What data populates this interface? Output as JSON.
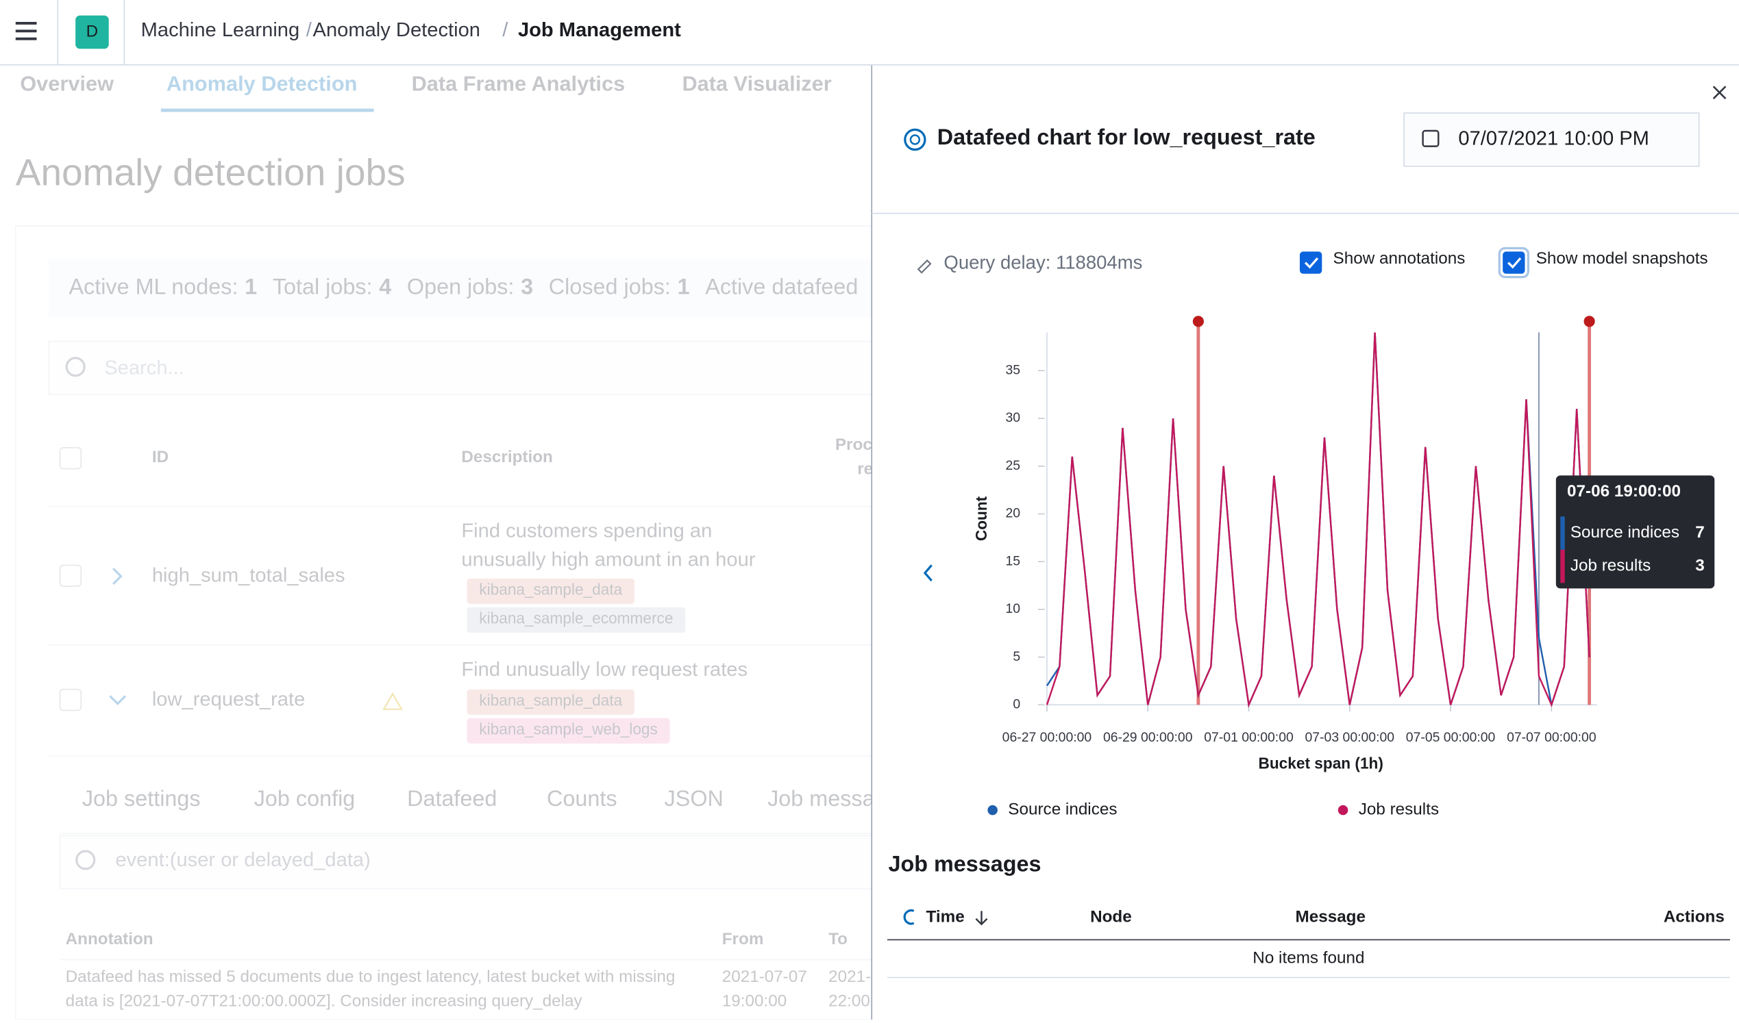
{
  "header": {
    "logo": "D",
    "breadcrumbs": [
      "Machine Learning",
      "Anomaly Detection",
      "Job Management"
    ]
  },
  "tabs": [
    "Overview",
    "Anomaly Detection",
    "Data Frame Analytics",
    "Data Visualizer"
  ],
  "page": {
    "title": "Anomaly detection jobs",
    "stats": [
      {
        "label": "Active ML nodes:",
        "value": 1
      },
      {
        "label": "Total jobs:",
        "value": 4
      },
      {
        "label": "Open jobs:",
        "value": 3
      },
      {
        "label": "Closed jobs:",
        "value": 1
      },
      {
        "label": "Active datafeed",
        "value": null
      }
    ],
    "search_placeholder": "Search...",
    "columns": [
      "ID",
      "Description",
      "Proc",
      "re"
    ],
    "rows": [
      {
        "id": "high_sum_total_sales",
        "description": [
          "Find customers spending an",
          "unusually high amount in an hour"
        ],
        "tags": [
          "kibana_sample_data",
          "kibana_sample_ecommerce"
        ]
      },
      {
        "id": "low_request_rate",
        "description": [
          "Find unusually low request rates"
        ],
        "tags": [
          "kibana_sample_data",
          "kibana_sample_web_logs"
        ]
      }
    ],
    "job_tabs": [
      "Job settings",
      "Job config",
      "Datafeed",
      "Counts",
      "JSON",
      "Job messa"
    ],
    "annotation_search": "event:(user or delayed_data)",
    "annotation_columns": [
      "Annotation",
      "From",
      "To"
    ],
    "annotation_row": {
      "text": [
        "Datafeed has missed 5 documents due to ingest latency, latest bucket with missing",
        "data is [2021-07-07T21:00:00.000Z]. Consider increasing query_delay"
      ],
      "from": [
        "2021-07-07",
        "19:00:00"
      ],
      "to": [
        "2021-",
        "22:00"
      ]
    }
  },
  "flyout": {
    "title": "Datafeed chart for low_request_rate",
    "date": "07/07/2021 10:00 PM",
    "query_delay": "Query delay: 118804ms",
    "checkboxes": [
      "Show annotations",
      "Show model snapshots"
    ],
    "messages_title": "Job messages",
    "message_columns": [
      "Time",
      "Node",
      "Message",
      "Actions"
    ],
    "empty": "No items found"
  },
  "chart_data": {
    "type": "line",
    "x_label": "Bucket span (1h)",
    "y_label": "Count",
    "categories": [
      "06-27 00:00:00",
      null,
      null,
      null,
      null,
      null,
      null,
      null,
      "06-29 00:00:00",
      null,
      null,
      null,
      null,
      null,
      null,
      null,
      "07-01 00:00:00",
      null,
      null,
      null,
      null,
      null,
      null,
      null,
      "07-03 00:00:00",
      null,
      null,
      null,
      null,
      null,
      null,
      null,
      "07-05 00:00:00",
      null,
      null,
      null,
      null,
      null,
      null,
      null,
      "07-07 00:00:00",
      null,
      null,
      null
    ],
    "series": [
      {
        "name": "Source indices",
        "color": "#1f5fad",
        "values": [
          2,
          4,
          26,
          14,
          1,
          3,
          29,
          12,
          0,
          5,
          30,
          10,
          1,
          4,
          25,
          9,
          0,
          3,
          24,
          11,
          1,
          4,
          28,
          10,
          0,
          6,
          39,
          12,
          1,
          3,
          27,
          9,
          0,
          4,
          25,
          11,
          1,
          5,
          32,
          7,
          0,
          4,
          31,
          5
        ]
      },
      {
        "name": "Job results",
        "color": "#c2185b",
        "values": [
          0,
          4,
          26,
          14,
          1,
          3,
          29,
          12,
          0,
          5,
          30,
          10,
          1,
          4,
          25,
          9,
          0,
          3,
          24,
          11,
          1,
          4,
          28,
          10,
          0,
          6,
          39,
          12,
          1,
          3,
          27,
          9,
          0,
          4,
          25,
          11,
          1,
          5,
          32,
          3,
          0,
          4,
          31,
          5
        ]
      }
    ],
    "ylim": [
      0,
      39
    ],
    "yticks": [
      0,
      5,
      10,
      15,
      20,
      25,
      30,
      35
    ],
    "model_snapshots": [
      12,
      43
    ],
    "annotation_lines": [
      39
    ],
    "tooltip": {
      "title": "07-06 19:00:00",
      "source": 7,
      "job": 3
    }
  }
}
